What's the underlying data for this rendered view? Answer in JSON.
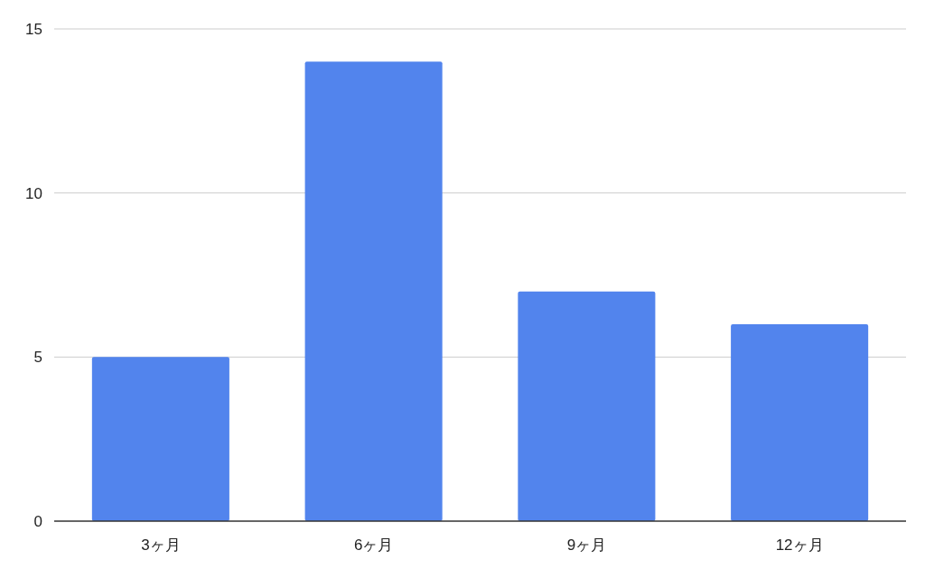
{
  "chart_data": {
    "type": "bar",
    "categories": [
      "3ヶ月",
      "6ヶ月",
      "9ヶ月",
      "12ヶ月"
    ],
    "series": [
      {
        "color": "#5284ed",
        "values": [
          5,
          14,
          7,
          6
        ]
      }
    ],
    "ylim": [
      0,
      15
    ],
    "yticks": [
      0,
      5,
      10,
      15
    ],
    "grid": "y"
  }
}
